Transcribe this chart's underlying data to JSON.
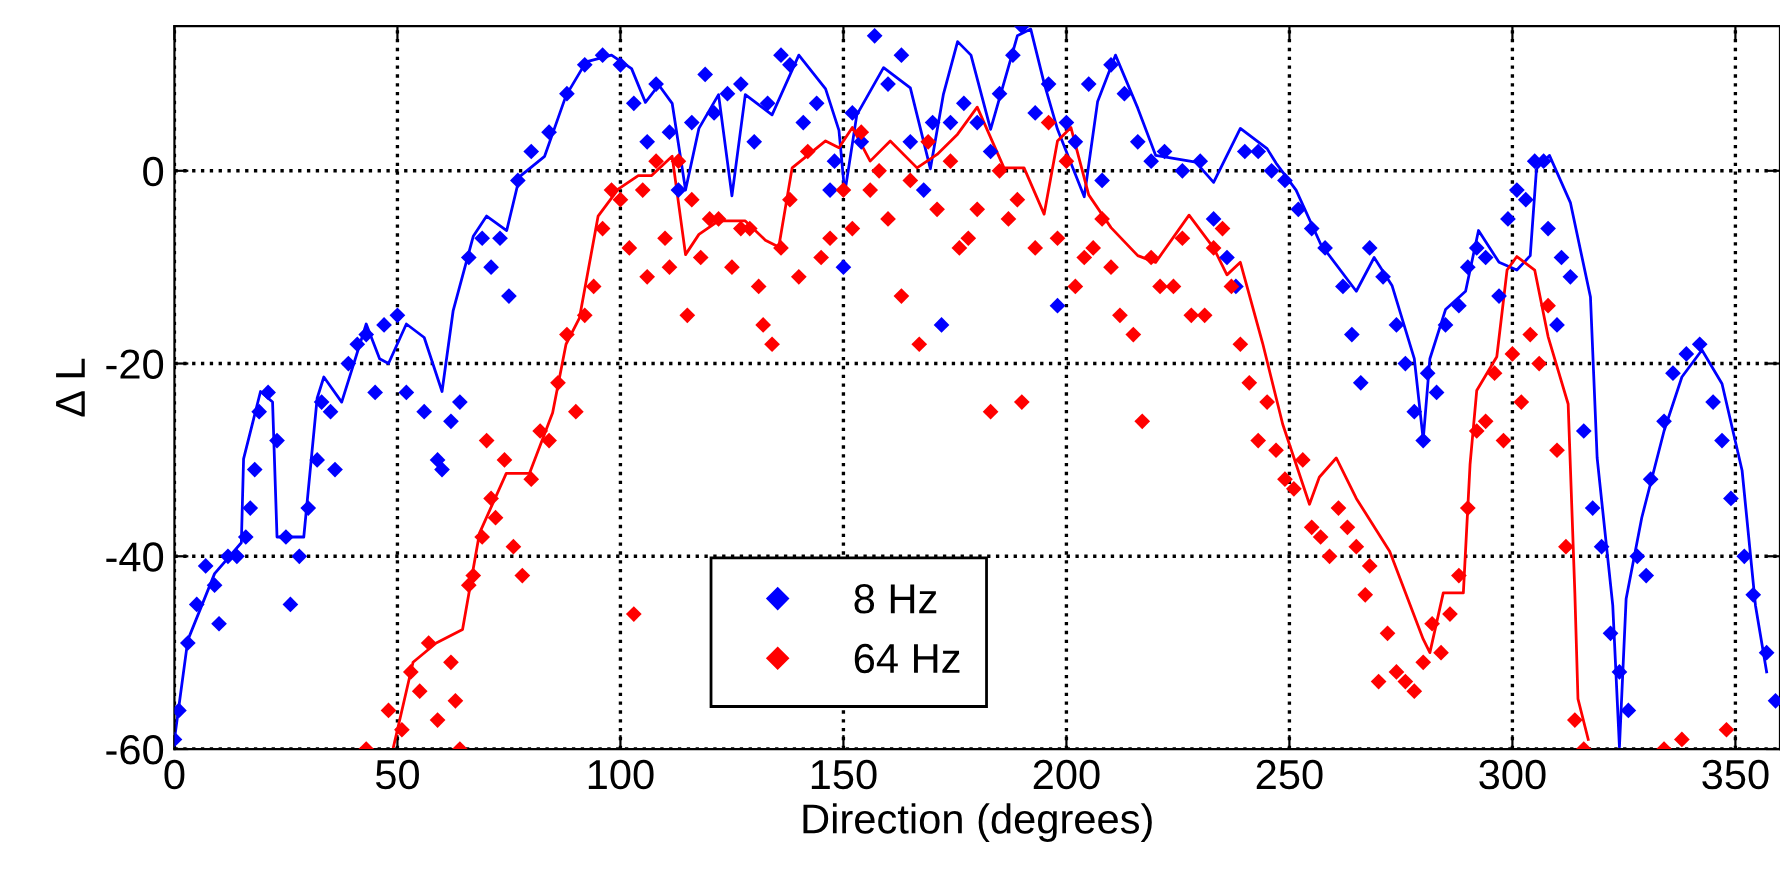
{
  "chart_data": {
    "type": "scatter",
    "xlabel": "Direction (degrees)",
    "ylabel": "Δ L",
    "xlim": [
      0,
      360
    ],
    "ylim": [
      -60,
      15
    ],
    "xticks": [
      0,
      50,
      100,
      150,
      200,
      250,
      300,
      350
    ],
    "yticks": [
      -60,
      -40,
      -20,
      0
    ],
    "grid": true,
    "legend": "bottom",
    "series": [
      {
        "name": "8 Hz",
        "color": "#0000ff",
        "marker": "diamond",
        "x": [
          0,
          1,
          3,
          5,
          7,
          9,
          10,
          12,
          14,
          16,
          17,
          18,
          19,
          21,
          23,
          25,
          26,
          28,
          30,
          32,
          33,
          35,
          36,
          39,
          41,
          43,
          45,
          47,
          50,
          52,
          56,
          59,
          60,
          62,
          64,
          66,
          69,
          71,
          73,
          75,
          77,
          80,
          84,
          88,
          92,
          96,
          100,
          103,
          106,
          108,
          111,
          113,
          116,
          119,
          121,
          124,
          127,
          130,
          133,
          136,
          138,
          141,
          144,
          147,
          148,
          150,
          152,
          154,
          157,
          160,
          163,
          165,
          168,
          170,
          172,
          174,
          177,
          180,
          183,
          185,
          188,
          190,
          193,
          196,
          198,
          200,
          202,
          205,
          208,
          210,
          213,
          216,
          219,
          222,
          226,
          230,
          233,
          236,
          238,
          240,
          243,
          246,
          249,
          252,
          255,
          258,
          262,
          264,
          266,
          268,
          271,
          274,
          276,
          278,
          280,
          281,
          283,
          285,
          288,
          290,
          292,
          294,
          297,
          299,
          301,
          303,
          305,
          307,
          308,
          310,
          311,
          313,
          316,
          318,
          320,
          322,
          324,
          326,
          328,
          330,
          331,
          334,
          336,
          339,
          342,
          345,
          347,
          349,
          352,
          354,
          357,
          359
        ],
        "values": [
          -59,
          -56,
          -49,
          -45,
          -41,
          -43,
          -47,
          -40,
          -40,
          -38,
          -35,
          -31,
          -25,
          -23,
          -28,
          -38,
          -45,
          -40,
          -35,
          -30,
          -24,
          -25,
          -31,
          -20,
          -18,
          -17,
          -23,
          -16,
          -15,
          -23,
          -25,
          -30,
          -31,
          -26,
          -24,
          -9,
          -7,
          -10,
          -7,
          -13,
          -1,
          2,
          4,
          8,
          11,
          12,
          11,
          7,
          3,
          9,
          4,
          -2,
          5,
          10,
          6,
          8,
          9,
          3,
          7,
          12,
          11,
          5,
          7,
          -2,
          1,
          -10,
          6,
          3,
          14,
          9,
          12,
          3,
          -2,
          5,
          -16,
          5,
          7,
          5,
          2,
          8,
          12,
          15,
          6,
          9,
          -14,
          5,
          3,
          9,
          -1,
          11,
          8,
          3,
          1,
          2,
          0,
          1,
          -5,
          -9,
          -12,
          2,
          2,
          0,
          -1,
          -4,
          -6,
          -8,
          -12,
          -17,
          -22,
          -8,
          -11,
          -16,
          -20,
          -25,
          -28,
          -21,
          -23,
          -16,
          -14,
          -10,
          -8,
          -9,
          -13,
          -5,
          -2,
          -3,
          1,
          1,
          -6,
          -16,
          -9,
          -11,
          -27,
          -35,
          -39,
          -48,
          -52,
          -56,
          -40,
          -42,
          -32,
          -26,
          -21,
          -19,
          -18,
          -24,
          -28,
          -34,
          -40,
          -44,
          -50,
          -55
        ]
      },
      {
        "name": "64 Hz",
        "color": "#ff0000",
        "marker": "diamond",
        "x": [
          43,
          48,
          51,
          53,
          55,
          57,
          59,
          62,
          63,
          64,
          66,
          67,
          69,
          70,
          71,
          72,
          74,
          76,
          78,
          80,
          82,
          84,
          86,
          88,
          90,
          92,
          94,
          96,
          98,
          100,
          102,
          103,
          105,
          106,
          108,
          110,
          111,
          113,
          115,
          116,
          118,
          120,
          122,
          125,
          127,
          129,
          131,
          132,
          134,
          136,
          138,
          140,
          142,
          145,
          147,
          150,
          152,
          154,
          156,
          158,
          160,
          163,
          165,
          167,
          169,
          171,
          174,
          176,
          178,
          180,
          183,
          185,
          187,
          189,
          190,
          193,
          196,
          198,
          200,
          202,
          204,
          206,
          208,
          210,
          212,
          215,
          217,
          219,
          221,
          224,
          226,
          228,
          231,
          233,
          235,
          237,
          239,
          241,
          243,
          245,
          247,
          249,
          251,
          253,
          255,
          257,
          259,
          261,
          263,
          265,
          267,
          268,
          270,
          272,
          274,
          276,
          278,
          280,
          282,
          284,
          286,
          288,
          290,
          292,
          294,
          296,
          298,
          300,
          302,
          304,
          306,
          308,
          310,
          312,
          314,
          316,
          334,
          338,
          348
        ],
        "values": [
          -60,
          -56,
          -58,
          -52,
          -54,
          -49,
          -57,
          -51,
          -55,
          -60,
          -43,
          -42,
          -38,
          -28,
          -34,
          -36,
          -30,
          -39,
          -42,
          -32,
          -27,
          -28,
          -22,
          -17,
          -25,
          -15,
          -12,
          -6,
          -2,
          -3,
          -8,
          -46,
          -2,
          -11,
          1,
          -7,
          -10,
          1,
          -15,
          -3,
          -9,
          -5,
          -5,
          -10,
          -6,
          -6,
          -12,
          -16,
          -18,
          -8,
          -3,
          -11,
          2,
          -9,
          -7,
          -2,
          -6,
          4,
          -2,
          0,
          -5,
          -13,
          -1,
          -18,
          3,
          -4,
          1,
          -8,
          -7,
          -4,
          -25,
          0,
          -5,
          -3,
          -24,
          -8,
          5,
          -7,
          1,
          -12,
          -9,
          -8,
          -5,
          -10,
          -15,
          -17,
          -26,
          -9,
          -12,
          -12,
          -7,
          -15,
          -15,
          -8,
          -6,
          -12,
          -18,
          -22,
          -28,
          -24,
          -29,
          -32,
          -33,
          -30,
          -37,
          -38,
          -40,
          -35,
          -37,
          -39,
          -44,
          -41,
          -53,
          -48,
          -52,
          -53,
          -54,
          -51,
          -47,
          -50,
          -46,
          -42,
          -35,
          -27,
          -26,
          -21,
          -28,
          -19,
          -24,
          -17,
          -20,
          -14,
          -29,
          -39,
          -57,
          -60,
          -60,
          -59,
          -58
        ]
      },
      {
        "color": "#0000ff",
        "type": "line",
        "marker": "none",
        "x": [
          0,
          3,
          9,
          15,
          15.5,
          19.3,
          22,
          23,
          29,
          32,
          33.5,
          37.5,
          43,
          46,
          48,
          52,
          56,
          60,
          62.5,
          67,
          70,
          74.5,
          77.4,
          83,
          87.8,
          92.3,
          98,
          102.5,
          105.6,
          108.6,
          111.6,
          114.6,
          117.6,
          122,
          125,
          128,
          134,
          140,
          146,
          149,
          150.3,
          153,
          159,
          165,
          169.5,
          172.4,
          175.6,
          178.6,
          183,
          189,
          192,
          195,
          198,
          204,
          207,
          211,
          216,
          220,
          229,
          233,
          239,
          245,
          247,
          251.5,
          257,
          265,
          269,
          273,
          278,
          280,
          281.5,
          285,
          289.5,
          292.4,
          297,
          301,
          304,
          305.4,
          308.3,
          313,
          317.5,
          319,
          322.5,
          324,
          325.5,
          329,
          334,
          338,
          342.5,
          347,
          351.5,
          354.5,
          357
        ],
        "values": [
          -59,
          -48.7,
          -41.8,
          -38.6,
          -29.9,
          -22.9,
          -24,
          -38,
          -38,
          -23.6,
          -21.4,
          -24,
          -15.9,
          -19.5,
          -20,
          -15.9,
          -17.3,
          -22.9,
          -14.5,
          -6.8,
          -4.7,
          -6.2,
          -0.6,
          1.5,
          7.8,
          11.3,
          12,
          10.6,
          7.1,
          8.9,
          7,
          -2,
          4.4,
          7.9,
          -2.6,
          7.9,
          5.8,
          12,
          8.5,
          4.2,
          -2.3,
          5.8,
          10.7,
          8.6,
          0.2,
          7.9,
          13.4,
          12,
          4.3,
          14,
          14.7,
          9.1,
          4.3,
          -2.7,
          7.2,
          12,
          6.5,
          1.6,
          0.9,
          -1.2,
          4.4,
          2.3,
          0.8,
          -2,
          -7.6,
          -12.5,
          -9,
          -11.9,
          -19.5,
          -27.9,
          -19.5,
          -14.4,
          -12.5,
          -6.2,
          -9.5,
          -10.3,
          -8.8,
          0.2,
          1.6,
          -3.3,
          -13.1,
          -29.8,
          -45.1,
          -59.8,
          -44.4,
          -36,
          -27,
          -21.4,
          -18.6,
          -22.1,
          -31.1,
          -45.1,
          -52
        ]
      },
      {
        "color": "#ff0000",
        "type": "line",
        "marker": "none",
        "x": [
          49,
          53.5,
          58.7,
          64.6,
          68.4,
          74.4,
          79.6,
          84.8,
          87.8,
          90.8,
          95,
          99.5,
          104,
          107,
          111.6,
          114.6,
          117.6,
          122,
          128,
          132.5,
          135.5,
          138.5,
          146,
          149,
          152,
          156,
          160.5,
          166.5,
          171,
          175.6,
          180,
          186,
          190.5,
          195,
          198,
          201,
          205,
          210,
          216,
          220,
          227.5,
          233,
          236,
          239,
          244,
          248.5,
          254.5,
          256.7,
          260.5,
          265,
          272.5,
          280,
          281.5,
          284.5,
          289,
          290.5,
          292,
          296.5,
          298.8,
          301,
          305,
          308,
          312.5,
          314,
          314.7,
          317
        ],
        "values": [
          -60,
          -51,
          -49,
          -47.6,
          -37.6,
          -31.4,
          -31.4,
          -25.1,
          -18,
          -15.3,
          -4.7,
          -1.9,
          -0.5,
          -0.5,
          1.5,
          -8.7,
          -6.6,
          -5.2,
          -5.2,
          -7.2,
          -7.9,
          0.3,
          3.1,
          2.4,
          4.5,
          1,
          3.1,
          0.3,
          1.7,
          3.8,
          6.6,
          0.3,
          0.3,
          -4.5,
          3.1,
          4.5,
          -2.5,
          -5.9,
          -8.8,
          -9.5,
          -4.6,
          -8,
          -10.8,
          -9.5,
          -17.9,
          -26.3,
          -34.6,
          -31.8,
          -29.8,
          -34,
          -39.5,
          -48.6,
          -50,
          -43.8,
          -43.8,
          -30.5,
          -22.8,
          -19.3,
          -10.3,
          -8.9,
          -10.3,
          -17.2,
          -24.2,
          -43.8,
          -54.8,
          -59
        ]
      }
    ]
  }
}
